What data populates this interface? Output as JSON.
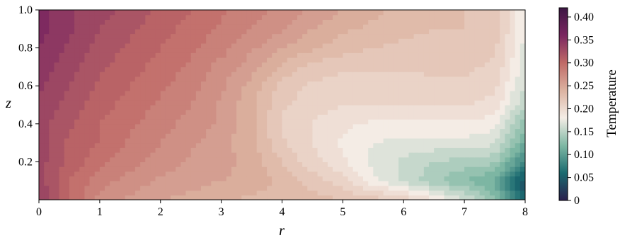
{
  "chart_data": {
    "type": "heatmap",
    "subtype": "filled-contour",
    "title": "",
    "xlabel": "r",
    "ylabel": "z",
    "xlim": [
      0,
      8
    ],
    "ylim": [
      0,
      1
    ],
    "x_ticks": [
      "0",
      "1",
      "2",
      "3",
      "4",
      "5",
      "6",
      "7",
      "8"
    ],
    "y_ticks": [
      "0.2",
      "0.4",
      "0.6",
      "0.8",
      "1.0"
    ],
    "colorbar": {
      "label": "Temperature",
      "range": [
        0,
        0.42
      ],
      "ticks": [
        "0",
        "0.05",
        "0.10",
        "0.15",
        "0.20",
        "0.25",
        "0.30",
        "0.35",
        "0.40"
      ],
      "colormap": "curl-like diverging",
      "colors": [
        "#2a1f4e",
        "#1a6b70",
        "#7fb8a4",
        "#f4ede6",
        "#dcb2a0",
        "#c06a67",
        "#7a2660",
        "#3d1744"
      ]
    },
    "grid": false,
    "legend": "none",
    "field_samples": {
      "r": [
        0,
        0.5,
        1,
        1.5,
        2,
        2.5,
        3,
        3.5,
        4,
        4.5,
        5,
        5.5,
        6,
        6.5,
        7,
        7.5,
        8
      ],
      "z": [
        0,
        0.1,
        0.2,
        0.3,
        0.4,
        0.5,
        0.6,
        0.7,
        0.8,
        0.9,
        1.0
      ],
      "temperature": [
        [
          0.34,
          0.3,
          0.27,
          0.26,
          0.25,
          0.245,
          0.24,
          0.235,
          0.23,
          0.23,
          0.225,
          0.22,
          0.21,
          0.19,
          0.165,
          0.13,
          0.05
        ],
        [
          0.33,
          0.3,
          0.28,
          0.27,
          0.26,
          0.255,
          0.25,
          0.245,
          0.235,
          0.22,
          0.205,
          0.18,
          0.16,
          0.14,
          0.125,
          0.11,
          0.04
        ],
        [
          0.33,
          0.31,
          0.29,
          0.28,
          0.27,
          0.26,
          0.255,
          0.245,
          0.225,
          0.205,
          0.19,
          0.17,
          0.16,
          0.15,
          0.145,
          0.14,
          0.08
        ],
        [
          0.33,
          0.31,
          0.3,
          0.285,
          0.275,
          0.265,
          0.255,
          0.24,
          0.215,
          0.2,
          0.185,
          0.175,
          0.17,
          0.17,
          0.17,
          0.165,
          0.11
        ],
        [
          0.33,
          0.315,
          0.3,
          0.29,
          0.28,
          0.27,
          0.26,
          0.24,
          0.21,
          0.2,
          0.19,
          0.185,
          0.185,
          0.185,
          0.185,
          0.18,
          0.13
        ],
        [
          0.335,
          0.32,
          0.305,
          0.295,
          0.285,
          0.275,
          0.26,
          0.24,
          0.215,
          0.205,
          0.2,
          0.2,
          0.2,
          0.2,
          0.2,
          0.195,
          0.15
        ],
        [
          0.34,
          0.325,
          0.31,
          0.3,
          0.29,
          0.28,
          0.265,
          0.245,
          0.22,
          0.21,
          0.205,
          0.205,
          0.205,
          0.21,
          0.21,
          0.205,
          0.16
        ],
        [
          0.345,
          0.33,
          0.315,
          0.305,
          0.295,
          0.285,
          0.27,
          0.255,
          0.235,
          0.22,
          0.215,
          0.215,
          0.215,
          0.215,
          0.215,
          0.21,
          0.17
        ],
        [
          0.35,
          0.335,
          0.32,
          0.31,
          0.3,
          0.29,
          0.28,
          0.265,
          0.25,
          0.24,
          0.23,
          0.225,
          0.22,
          0.22,
          0.22,
          0.215,
          0.17
        ],
        [
          0.355,
          0.34,
          0.325,
          0.315,
          0.305,
          0.295,
          0.285,
          0.275,
          0.265,
          0.25,
          0.24,
          0.235,
          0.23,
          0.225,
          0.225,
          0.22,
          0.175
        ],
        [
          0.355,
          0.34,
          0.33,
          0.32,
          0.31,
          0.3,
          0.29,
          0.28,
          0.27,
          0.26,
          0.25,
          0.24,
          0.235,
          0.23,
          0.225,
          0.22,
          0.175
        ]
      ]
    }
  }
}
